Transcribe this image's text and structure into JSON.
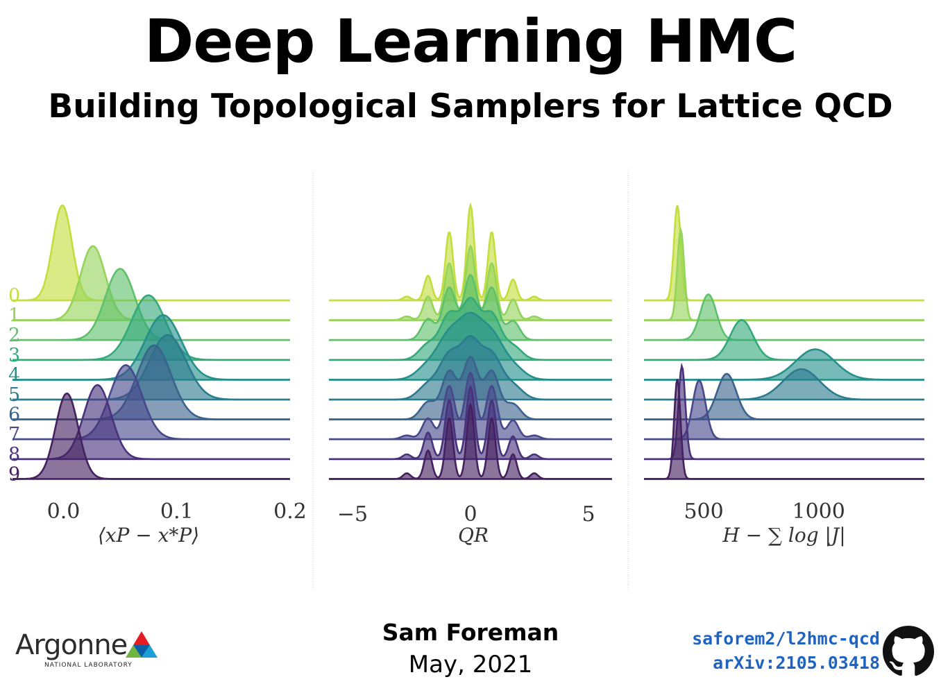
{
  "header": {
    "title": "Deep Learning HMC",
    "subtitle": "Building Topological Samplers for Lattice QCD"
  },
  "footer": {
    "author": "Sam Foreman",
    "date": "May, 2021",
    "logo_name": "Argonne",
    "logo_subtitle": "NATIONAL LABORATORY",
    "repo": "saforem2/l2hmc-qcd",
    "arxiv": "arXiv:2105.03418"
  },
  "icons": [
    "argonne-logo-icon",
    "github-icon"
  ],
  "chart_data": [
    {
      "type": "ridgeline",
      "xlabel": "⟨xP − x*P⟩",
      "xlim": [
        -0.045,
        0.2
      ],
      "xticks": [
        0.0,
        0.1,
        0.2
      ],
      "xtick_labels": [
        "0.0",
        "0.1",
        "0.2"
      ],
      "row_labels": [
        "0",
        "1",
        "2",
        "3",
        "4",
        "5",
        "6",
        "7",
        "8",
        "9"
      ],
      "colors": [
        "#c3dd3c",
        "#95d45a",
        "#5ec06b",
        "#34a97a",
        "#25908a",
        "#2c7a8e",
        "#3b628c",
        "#46488a",
        "#48327c",
        "#44205f"
      ],
      "series": [
        {
          "label": "0",
          "peaks": [
            {
              "mu": -0.001,
              "sigma": 0.0085,
              "amp": 1.0
            }
          ]
        },
        {
          "label": "1",
          "peaks": [
            {
              "mu": 0.026,
              "sigma": 0.011,
              "amp": 0.78
            }
          ]
        },
        {
          "label": "2",
          "peaks": [
            {
              "mu": 0.05,
              "sigma": 0.013,
              "amp": 0.75
            }
          ]
        },
        {
          "label": "3",
          "peaks": [
            {
              "mu": 0.075,
              "sigma": 0.015,
              "amp": 0.68
            }
          ]
        },
        {
          "label": "4",
          "peaks": [
            {
              "mu": 0.088,
              "sigma": 0.016,
              "amp": 0.68
            }
          ]
        },
        {
          "label": "5",
          "peaks": [
            {
              "mu": 0.092,
              "sigma": 0.016,
              "amp": 0.68
            }
          ]
        },
        {
          "label": "6",
          "peaks": [
            {
              "mu": 0.08,
              "sigma": 0.015,
              "amp": 0.78
            }
          ]
        },
        {
          "label": "7",
          "peaks": [
            {
              "mu": 0.055,
              "sigma": 0.014,
              "amp": 0.78
            }
          ]
        },
        {
          "label": "8",
          "peaks": [
            {
              "mu": 0.03,
              "sigma": 0.012,
              "amp": 0.78
            }
          ]
        },
        {
          "label": "9",
          "peaks": [
            {
              "mu": 0.003,
              "sigma": 0.01,
              "amp": 0.9
            }
          ]
        }
      ]
    },
    {
      "type": "ridgeline",
      "xlabel": "QR",
      "xlim": [
        -6,
        6
      ],
      "xticks": [
        -5,
        0,
        5
      ],
      "xtick_labels": [
        "−5",
        "0",
        "5"
      ],
      "row_labels": [],
      "colors": [
        "#c3dd3c",
        "#95d45a",
        "#5ec06b",
        "#34a97a",
        "#25908a",
        "#2c7a8e",
        "#3b628c",
        "#46488a",
        "#48327c",
        "#44205f"
      ],
      "series": [
        {
          "label": "0",
          "peaks": [
            {
              "mu": 0,
              "sigma": 0.16,
              "amp": 1.0
            },
            {
              "mu": -0.9,
              "sigma": 0.16,
              "amp": 0.72
            },
            {
              "mu": 0.9,
              "sigma": 0.16,
              "amp": 0.72
            },
            {
              "mu": -1.8,
              "sigma": 0.16,
              "amp": 0.26
            },
            {
              "mu": 1.8,
              "sigma": 0.16,
              "amp": 0.22
            },
            {
              "mu": -2.7,
              "sigma": 0.16,
              "amp": 0.04
            },
            {
              "mu": 2.7,
              "sigma": 0.16,
              "amp": 0.04
            }
          ]
        },
        {
          "label": "1",
          "peaks": [
            {
              "mu": 0,
              "sigma": 0.2,
              "amp": 0.78
            },
            {
              "mu": -0.9,
              "sigma": 0.2,
              "amp": 0.6
            },
            {
              "mu": 0.9,
              "sigma": 0.2,
              "amp": 0.6
            },
            {
              "mu": -1.8,
              "sigma": 0.2,
              "amp": 0.25
            },
            {
              "mu": 1.8,
              "sigma": 0.2,
              "amp": 0.22
            },
            {
              "mu": -2.7,
              "sigma": 0.2,
              "amp": 0.04
            },
            {
              "mu": 2.7,
              "sigma": 0.2,
              "amp": 0.04
            }
          ]
        },
        {
          "label": "2",
          "peaks": [
            {
              "mu": 0,
              "sigma": 0.28,
              "amp": 0.68
            },
            {
              "mu": -0.9,
              "sigma": 0.28,
              "amp": 0.55
            },
            {
              "mu": 0.9,
              "sigma": 0.28,
              "amp": 0.55
            },
            {
              "mu": -1.8,
              "sigma": 0.28,
              "amp": 0.22
            },
            {
              "mu": 1.8,
              "sigma": 0.28,
              "amp": 0.2
            }
          ]
        },
        {
          "label": "3",
          "peaks": [
            {
              "mu": 0,
              "sigma": 0.38,
              "amp": 0.6
            },
            {
              "mu": -0.9,
              "sigma": 0.38,
              "amp": 0.46
            },
            {
              "mu": 0.9,
              "sigma": 0.38,
              "amp": 0.46
            },
            {
              "mu": -1.8,
              "sigma": 0.38,
              "amp": 0.16
            },
            {
              "mu": 1.8,
              "sigma": 0.38,
              "amp": 0.14
            }
          ]
        },
        {
          "label": "4",
          "peaks": [
            {
              "mu": 0,
              "sigma": 0.48,
              "amp": 0.56
            },
            {
              "mu": -0.9,
              "sigma": 0.48,
              "amp": 0.42
            },
            {
              "mu": 0.9,
              "sigma": 0.48,
              "amp": 0.42
            },
            {
              "mu": -1.8,
              "sigma": 0.48,
              "amp": 0.14
            },
            {
              "mu": 1.8,
              "sigma": 0.48,
              "amp": 0.13
            }
          ]
        },
        {
          "label": "5",
          "peaks": [
            {
              "mu": 0,
              "sigma": 0.42,
              "amp": 0.58
            },
            {
              "mu": -0.9,
              "sigma": 0.42,
              "amp": 0.44
            },
            {
              "mu": 0.9,
              "sigma": 0.42,
              "amp": 0.44
            },
            {
              "mu": -1.8,
              "sigma": 0.42,
              "amp": 0.15
            },
            {
              "mu": 1.8,
              "sigma": 0.42,
              "amp": 0.14
            }
          ]
        },
        {
          "label": "6",
          "peaks": [
            {
              "mu": 0,
              "sigma": 0.32,
              "amp": 0.64
            },
            {
              "mu": -0.9,
              "sigma": 0.32,
              "amp": 0.5
            },
            {
              "mu": 0.9,
              "sigma": 0.32,
              "amp": 0.5
            },
            {
              "mu": -1.8,
              "sigma": 0.32,
              "amp": 0.18
            },
            {
              "mu": 1.8,
              "sigma": 0.32,
              "amp": 0.16
            }
          ]
        },
        {
          "label": "7",
          "peaks": [
            {
              "mu": 0,
              "sigma": 0.24,
              "amp": 0.7
            },
            {
              "mu": -0.9,
              "sigma": 0.24,
              "amp": 0.56
            },
            {
              "mu": 0.9,
              "sigma": 0.24,
              "amp": 0.56
            },
            {
              "mu": -1.8,
              "sigma": 0.24,
              "amp": 0.22
            },
            {
              "mu": 1.8,
              "sigma": 0.24,
              "amp": 0.2
            },
            {
              "mu": -2.7,
              "sigma": 0.24,
              "amp": 0.04
            },
            {
              "mu": 2.7,
              "sigma": 0.24,
              "amp": 0.04
            }
          ]
        },
        {
          "label": "8",
          "peaks": [
            {
              "mu": 0,
              "sigma": 0.18,
              "amp": 0.76
            },
            {
              "mu": -0.9,
              "sigma": 0.18,
              "amp": 0.62
            },
            {
              "mu": 0.9,
              "sigma": 0.18,
              "amp": 0.62
            },
            {
              "mu": -1.8,
              "sigma": 0.18,
              "amp": 0.28
            },
            {
              "mu": 1.8,
              "sigma": 0.18,
              "amp": 0.24
            },
            {
              "mu": -2.7,
              "sigma": 0.18,
              "amp": 0.05
            },
            {
              "mu": 2.7,
              "sigma": 0.18,
              "amp": 0.05
            }
          ]
        },
        {
          "label": "9",
          "peaks": [
            {
              "mu": 0,
              "sigma": 0.16,
              "amp": 0.78
            },
            {
              "mu": -0.9,
              "sigma": 0.16,
              "amp": 0.64
            },
            {
              "mu": 0.9,
              "sigma": 0.16,
              "amp": 0.64
            },
            {
              "mu": -1.8,
              "sigma": 0.16,
              "amp": 0.3
            },
            {
              "mu": 1.8,
              "sigma": 0.16,
              "amp": 0.26
            },
            {
              "mu": -2.7,
              "sigma": 0.16,
              "amp": 0.06
            },
            {
              "mu": 2.7,
              "sigma": 0.16,
              "amp": 0.06
            }
          ]
        }
      ]
    },
    {
      "type": "ridgeline",
      "xlabel": "H − ∑ log |J|",
      "xlim": [
        240,
        1460
      ],
      "xticks": [
        500,
        1000
      ],
      "xtick_labels": [
        "500",
        "1000"
      ],
      "row_labels": [],
      "colors": [
        "#c3dd3c",
        "#95d45a",
        "#5ec06b",
        "#34a97a",
        "#25908a",
        "#2c7a8e",
        "#3b628c",
        "#46488a",
        "#48327c",
        "#44205f"
      ],
      "series": [
        {
          "label": "0",
          "peaks": [
            {
              "mu": 385,
              "sigma": 15,
              "amp": 1.0
            }
          ]
        },
        {
          "label": "1",
          "peaks": [
            {
              "mu": 400,
              "sigma": 15,
              "amp": 0.95
            }
          ]
        },
        {
          "label": "2",
          "peaks": [
            {
              "mu": 520,
              "sigma": 35,
              "amp": 0.48
            }
          ]
        },
        {
          "label": "3",
          "peaks": [
            {
              "mu": 665,
              "sigma": 50,
              "amp": 0.42
            }
          ]
        },
        {
          "label": "4",
          "peaks": [
            {
              "mu": 985,
              "sigma": 85,
              "amp": 0.32
            }
          ]
        },
        {
          "label": "5",
          "peaks": [
            {
              "mu": 925,
              "sigma": 80,
              "amp": 0.32
            }
          ]
        },
        {
          "label": "6",
          "peaks": [
            {
              "mu": 600,
              "sigma": 42,
              "amp": 0.48
            }
          ]
        },
        {
          "label": "7",
          "peaks": [
            {
              "mu": 480,
              "sigma": 28,
              "amp": 0.62
            }
          ]
        },
        {
          "label": "8",
          "peaks": [
            {
              "mu": 405,
              "sigma": 15,
              "amp": 0.98
            }
          ]
        },
        {
          "label": "9",
          "peaks": [
            {
              "mu": 385,
              "sigma": 14,
              "amp": 1.05
            }
          ]
        }
      ]
    }
  ]
}
